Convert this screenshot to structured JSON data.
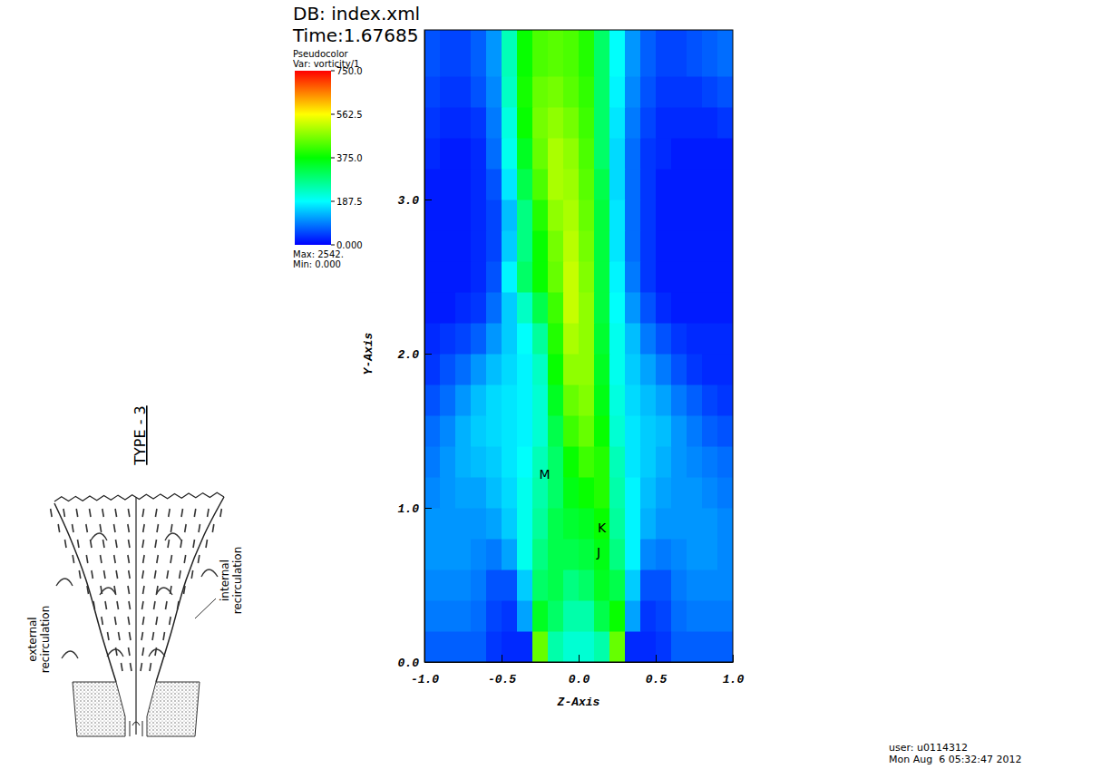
{
  "chart_data": {
    "type": "heatmap",
    "db": "DB: index.xml",
    "time": "Time:1.67685",
    "legend_title": "Pseudocolor",
    "variable": "Var: vorticity/1",
    "max_label": "Max: 2542.",
    "min_label": "Min: 0.000",
    "x_label": "Z-Axis",
    "y_label": "Y-Axis",
    "xlim": [
      -1,
      1
    ],
    "ylim": [
      0,
      4.1
    ],
    "xticks": [
      {
        "value": -1,
        "label": "-1.0"
      },
      -0.5,
      {
        "value": 0,
        "label": "0.0"
      },
      0.5,
      {
        "value": 1,
        "label": "1.0"
      }
    ],
    "yticks": [
      {
        "value": 0,
        "label": "0.0"
      },
      {
        "value": 1,
        "label": "1.0"
      },
      {
        "value": 2,
        "label": "2.0"
      },
      {
        "value": 3,
        "label": "3.0"
      }
    ],
    "colorbar": {
      "range": [
        0,
        750
      ],
      "ticks": [
        {
          "value": 750,
          "label": "750.0"
        },
        562.5,
        {
          "value": 375,
          "label": "375.0"
        },
        187.5,
        {
          "value": 0,
          "label": "0.000"
        }
      ],
      "colors": [
        "#0000ff",
        "#00ffff",
        "#00ff00",
        "#ffff00",
        "#ff0000"
      ]
    },
    "z_edges": [
      -1,
      -0.9,
      -0.8,
      -0.7,
      -0.6,
      -0.5,
      -0.4,
      -0.3,
      -0.2,
      -0.1,
      0,
      0.1,
      0.2,
      0.3,
      0.4,
      0.5,
      0.6,
      0.7,
      0.8,
      0.9,
      1
    ],
    "y_edges": [
      0,
      0.2,
      0.4,
      0.6,
      0.8,
      1.0,
      1.2,
      1.4,
      1.6,
      1.8,
      2.0,
      2.2,
      2.4,
      2.6,
      2.8,
      3.0,
      3.2,
      3.4,
      3.6,
      3.8,
      4.1
    ],
    "cells": [
      [
        70,
        70,
        70,
        70,
        40,
        30,
        30,
        450,
        250,
        220,
        220,
        250,
        450,
        30,
        30,
        40,
        70,
        70,
        70,
        70
      ],
      [
        90,
        90,
        90,
        80,
        50,
        40,
        120,
        350,
        300,
        250,
        250,
        320,
        380,
        120,
        40,
        50,
        80,
        90,
        90,
        90
      ],
      [
        100,
        100,
        100,
        90,
        60,
        60,
        150,
        300,
        320,
        280,
        300,
        350,
        320,
        150,
        60,
        60,
        90,
        100,
        100,
        100
      ],
      [
        110,
        110,
        110,
        100,
        90,
        120,
        200,
        280,
        320,
        320,
        330,
        360,
        280,
        180,
        100,
        90,
        100,
        110,
        110,
        100
      ],
      [
        110,
        110,
        110,
        110,
        120,
        150,
        200,
        260,
        320,
        340,
        350,
        380,
        260,
        180,
        130,
        110,
        110,
        110,
        110,
        100
      ],
      [
        100,
        110,
        120,
        120,
        140,
        160,
        200,
        250,
        300,
        360,
        380,
        400,
        250,
        180,
        140,
        120,
        110,
        110,
        100,
        90
      ],
      [
        90,
        110,
        130,
        140,
        150,
        170,
        190,
        240,
        300,
        380,
        420,
        400,
        240,
        170,
        150,
        130,
        110,
        100,
        90,
        80
      ],
      [
        80,
        100,
        130,
        150,
        160,
        170,
        180,
        220,
        320,
        420,
        450,
        380,
        220,
        170,
        150,
        140,
        110,
        90,
        70,
        60
      ],
      [
        60,
        80,
        110,
        140,
        160,
        170,
        180,
        220,
        350,
        450,
        470,
        360,
        210,
        160,
        140,
        120,
        90,
        70,
        50,
        40
      ],
      [
        40,
        60,
        80,
        110,
        140,
        160,
        180,
        230,
        380,
        480,
        480,
        350,
        200,
        150,
        120,
        90,
        60,
        40,
        30,
        30
      ],
      [
        30,
        40,
        50,
        70,
        110,
        150,
        190,
        260,
        400,
        500,
        480,
        340,
        200,
        140,
        90,
        60,
        40,
        30,
        30,
        30
      ],
      [
        20,
        20,
        30,
        40,
        80,
        150,
        230,
        320,
        420,
        520,
        480,
        330,
        190,
        110,
        60,
        30,
        20,
        20,
        20,
        20
      ],
      [
        20,
        20,
        20,
        30,
        60,
        180,
        300,
        380,
        450,
        520,
        470,
        330,
        180,
        90,
        40,
        20,
        20,
        20,
        20,
        20
      ],
      [
        20,
        20,
        20,
        30,
        50,
        150,
        280,
        380,
        460,
        510,
        460,
        330,
        170,
        80,
        40,
        20,
        20,
        20,
        20,
        20
      ],
      [
        20,
        20,
        20,
        30,
        50,
        140,
        280,
        400,
        480,
        500,
        450,
        330,
        170,
        80,
        40,
        20,
        20,
        20,
        20,
        20
      ],
      [
        20,
        20,
        20,
        30,
        60,
        170,
        320,
        430,
        500,
        490,
        440,
        320,
        160,
        80,
        40,
        20,
        20,
        20,
        20,
        20
      ],
      [
        30,
        20,
        20,
        30,
        80,
        200,
        350,
        450,
        500,
        480,
        430,
        300,
        160,
        80,
        40,
        30,
        20,
        20,
        20,
        20
      ],
      [
        40,
        30,
        30,
        40,
        90,
        210,
        380,
        460,
        480,
        460,
        420,
        300,
        170,
        90,
        50,
        30,
        30,
        30,
        30,
        40
      ],
      [
        50,
        40,
        40,
        60,
        100,
        230,
        390,
        450,
        460,
        440,
        410,
        300,
        180,
        100,
        60,
        40,
        40,
        40,
        50,
        60
      ],
      [
        60,
        50,
        50,
        70,
        110,
        240,
        380,
        430,
        440,
        430,
        400,
        300,
        190,
        110,
        70,
        50,
        50,
        60,
        70,
        80
      ]
    ],
    "annotations": [
      {
        "text": "M",
        "z": -0.22,
        "y": 1.19
      },
      {
        "text": "K",
        "z": 0.15,
        "y": 0.84
      },
      {
        "text": "J",
        "z": 0.13,
        "y": 0.68
      }
    ],
    "user": "user: u0114312",
    "date": "Mon Aug  6 05:32:47 2012"
  },
  "diagram": {
    "title": "TYPE - 3",
    "labels": [
      "external recirculation",
      "internal recirculation"
    ]
  }
}
